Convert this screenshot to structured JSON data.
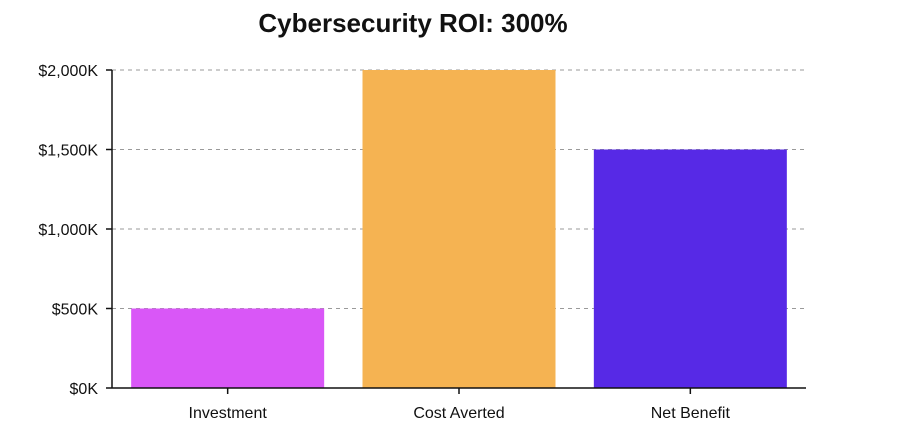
{
  "chart_data": {
    "type": "bar",
    "title": "Cybersecurity ROI: 300%",
    "xlabel": "",
    "ylabel": "",
    "categories": [
      "Investment",
      "Cost Averted",
      "Net Benefit"
    ],
    "values": [
      500,
      2000,
      1500
    ],
    "colors": [
      "#d957f7",
      "#f5b352",
      "#5729e6"
    ],
    "ylim": [
      0,
      2000
    ],
    "yticks": [
      0,
      500,
      1000,
      1500,
      2000
    ],
    "ytick_labels": [
      "$0K",
      "$500K",
      "$1,000K",
      "$1,500K",
      "$2,000K"
    ],
    "grid": true,
    "grid_color": "#9a9a9a"
  }
}
